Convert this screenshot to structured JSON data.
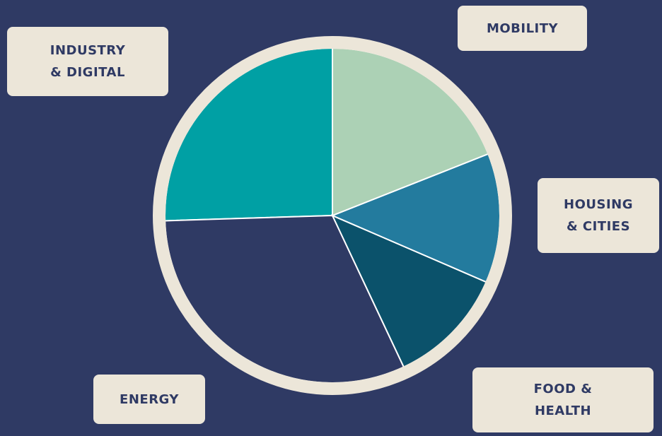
{
  "chart_data": {
    "type": "pie",
    "categories": [
      "MOBILITY",
      "HOUSING\n& CITIES",
      "FOOD &\nHEALTH",
      "ENERGY",
      "INDUSTRY\n& DIGITAL"
    ],
    "values": [
      19,
      12.5,
      11.5,
      31.5,
      25.5
    ],
    "colors": [
      "#acd1b5",
      "#237b9e",
      "#0b526b",
      "#2f3a64",
      "#00a0a4"
    ]
  }
}
